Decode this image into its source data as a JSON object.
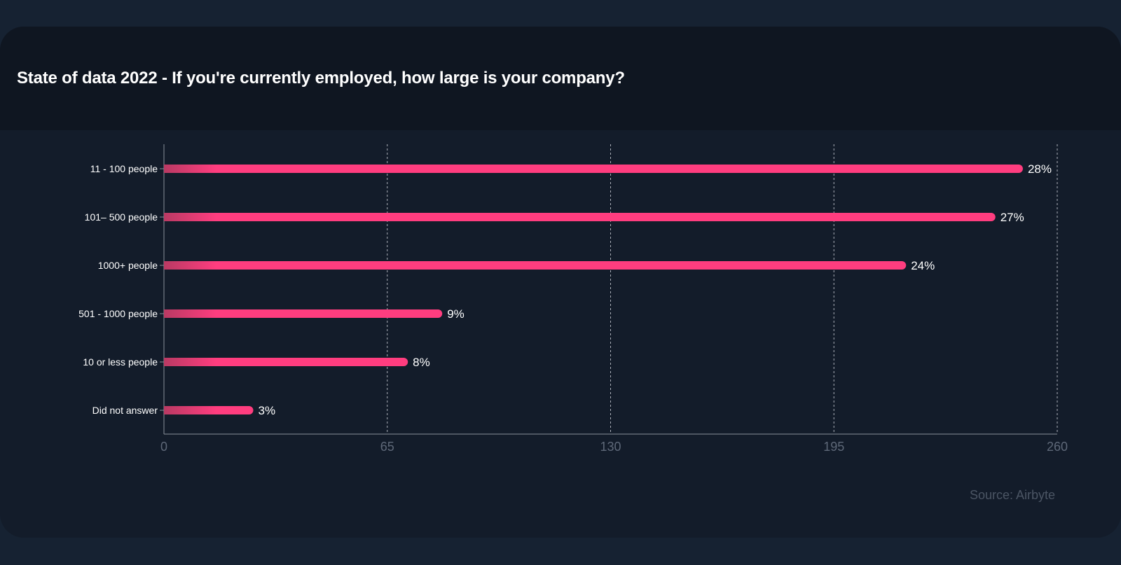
{
  "title": "State of data 2022 - If you're currently employed, how large is your company?",
  "source": "Source: Airbyte",
  "colors": {
    "page_background": "#162232",
    "card_background": "#131c2a",
    "header_background": "#0f1621",
    "bar": "#ff3d7f",
    "bar_fade": "#b93a63",
    "text": "#ffffff",
    "tick_text": "#5e6878",
    "grid": "#c8ccd4"
  },
  "chart_data": {
    "type": "bar",
    "orientation": "horizontal",
    "title": "State of data 2022 - If you're currently employed, how large is your company?",
    "categories": [
      "11 - 100 people",
      "101– 500 people",
      "1000+ people",
      "501 - 1000 people",
      "10 or less people",
      "Did not answer"
    ],
    "values": [
      250,
      242,
      216,
      81,
      71,
      26
    ],
    "data_labels": [
      "28%",
      "27%",
      "24%",
      "9%",
      "8%",
      "3%"
    ],
    "xlim": [
      0,
      260
    ],
    "xticks": [
      "0",
      "65",
      "130",
      "195",
      "260"
    ],
    "xlabel": "",
    "ylabel": "",
    "grid": "vertical dashed",
    "legend": "none"
  }
}
